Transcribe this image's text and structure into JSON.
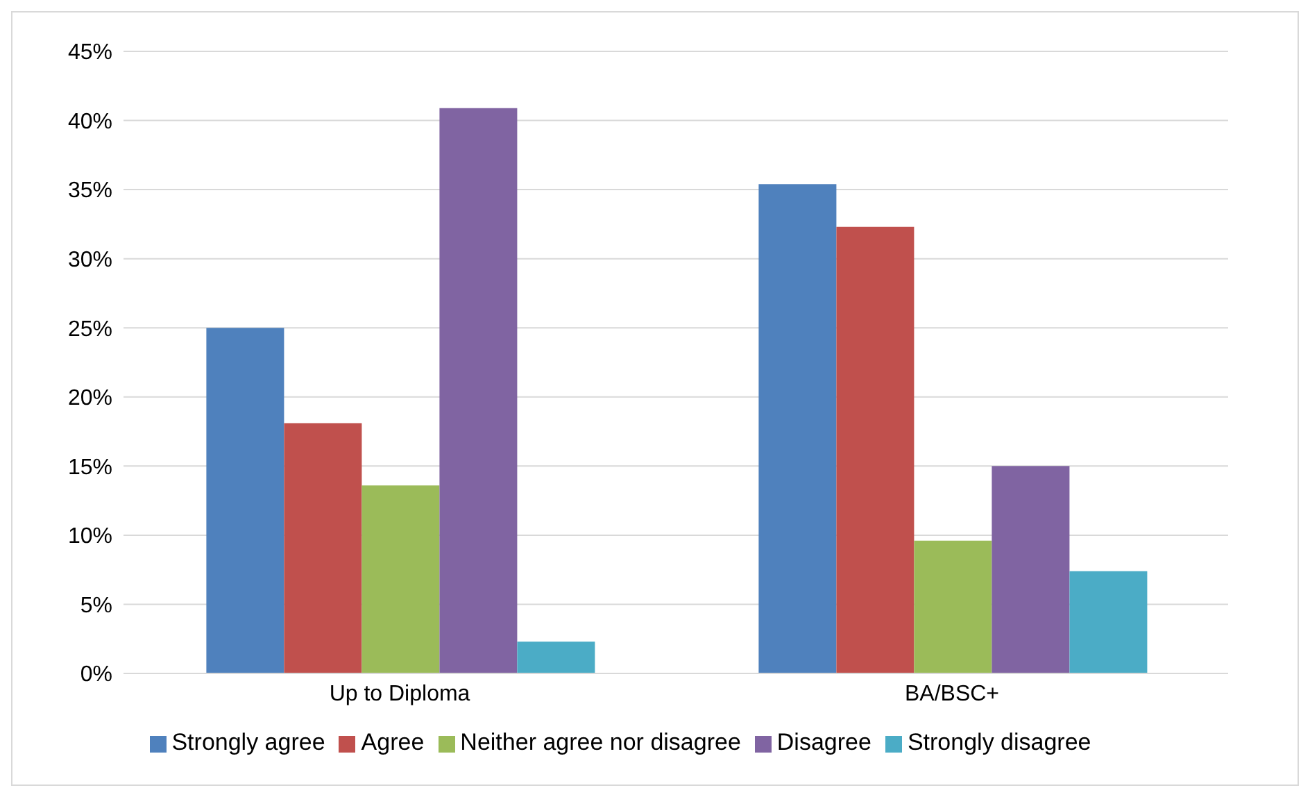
{
  "chart_data": {
    "type": "bar",
    "categories": [
      "Up to Diploma",
      "BA/BSC+"
    ],
    "series": [
      {
        "name": "Strongly agree",
        "color": "#4f81bd",
        "values": [
          25,
          35.4
        ]
      },
      {
        "name": "Agree",
        "color": "#c0504d",
        "values": [
          18.1,
          32.3
        ]
      },
      {
        "name": "Neither agree nor disagree",
        "color": "#9bbb59",
        "values": [
          13.6,
          9.6
        ]
      },
      {
        "name": "Disagree",
        "color": "#8064a2",
        "values": [
          40.9,
          15
        ]
      },
      {
        "name": "Strongly disagree",
        "color": "#4bacc6",
        "values": [
          2.3,
          7.4
        ]
      }
    ],
    "ylim": [
      0,
      45
    ],
    "yticks": [
      {
        "value": 0,
        "label": "0%"
      },
      {
        "value": 5,
        "label": "5%"
      },
      {
        "value": 10,
        "label": "10%"
      },
      {
        "value": 15,
        "label": "15%"
      },
      {
        "value": 20,
        "label": "20%"
      },
      {
        "value": 25,
        "label": "25%"
      },
      {
        "value": 30,
        "label": "30%"
      },
      {
        "value": 35,
        "label": "35%"
      },
      {
        "value": 40,
        "label": "40%"
      },
      {
        "value": 45,
        "label": "45%"
      }
    ],
    "grid": "y",
    "legend": "bottom"
  }
}
